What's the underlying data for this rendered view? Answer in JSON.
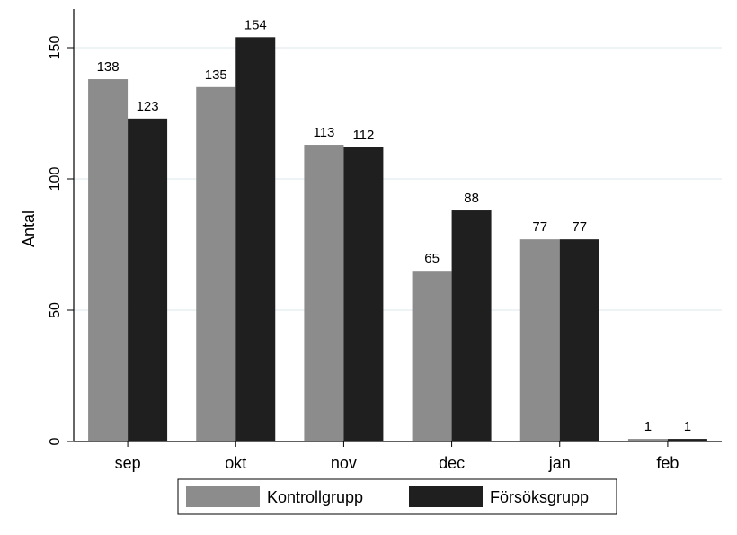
{
  "chart_data": {
    "type": "bar",
    "title": "",
    "xlabel": "",
    "ylabel": "Antal",
    "ylim": [
      0,
      165
    ],
    "yticks": [
      "0",
      "50",
      "100",
      "150"
    ],
    "grid": true,
    "legend_position": "bottom",
    "categories": [
      "sep",
      "okt",
      "nov",
      "dec",
      "jan",
      "feb"
    ],
    "series": [
      {
        "name": "Kontrollgrupp",
        "color": "#8c8c8c",
        "values": [
          138,
          135,
          113,
          65,
          77,
          1
        ]
      },
      {
        "name": "Försöksgrupp",
        "color": "#1f1f1f",
        "values": [
          123,
          154,
          112,
          88,
          77,
          1
        ]
      }
    ]
  }
}
